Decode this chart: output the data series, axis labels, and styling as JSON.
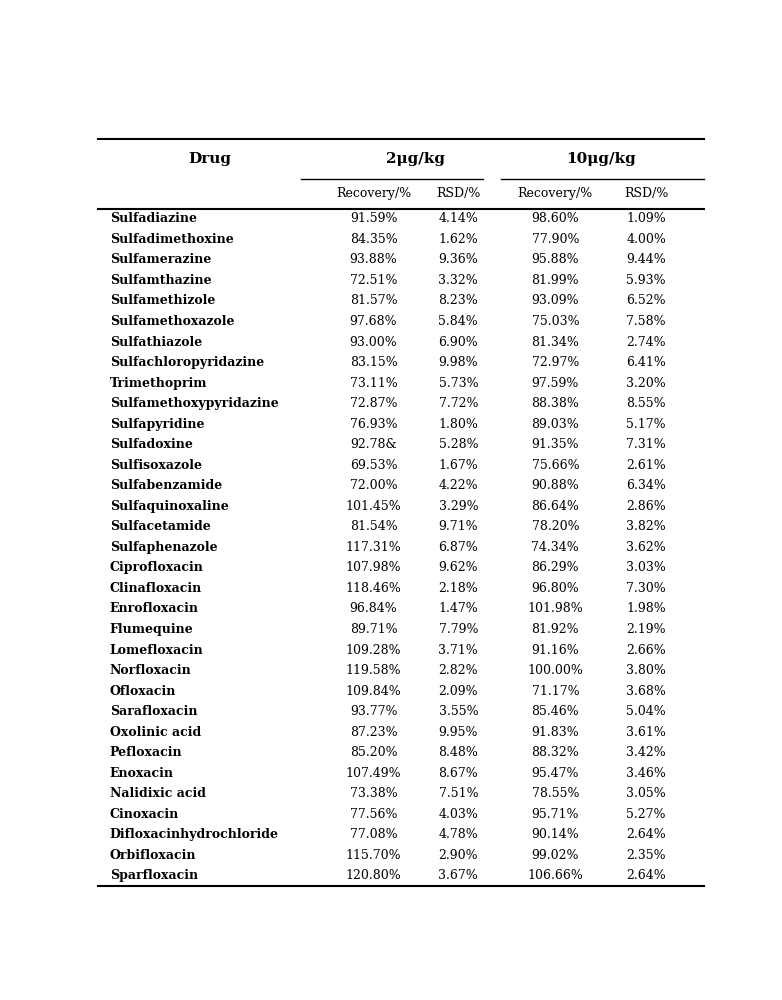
{
  "title_col0": "Drug",
  "title_col1": "2μg/kg",
  "title_col2": "10μg/kg",
  "sub_col1": "Recovery/%",
  "sub_col2": "RSD/%",
  "sub_col3": "Recovery/%",
  "sub_col4": "RSD/%",
  "rows": [
    [
      "Sulfadiazine",
      "91.59%",
      "4.14%",
      "98.60%",
      "1.09%"
    ],
    [
      "Sulfadimethoxine",
      "84.35%",
      "1.62%",
      "77.90%",
      "4.00%"
    ],
    [
      "Sulfamerazine",
      "93.88%",
      "9.36%",
      "95.88%",
      "9.44%"
    ],
    [
      "Sulfamthazine",
      "72.51%",
      "3.32%",
      "81.99%",
      "5.93%"
    ],
    [
      "Sulfamethizole",
      "81.57%",
      "8.23%",
      "93.09%",
      "6.52%"
    ],
    [
      "Sulfamethoxazole",
      "97.68%",
      "5.84%",
      "75.03%",
      "7.58%"
    ],
    [
      "Sulfathiazole",
      "93.00%",
      "6.90%",
      "81.34%",
      "2.74%"
    ],
    [
      "Sulfachloropyridazine",
      "83.15%",
      "9.98%",
      "72.97%",
      "6.41%"
    ],
    [
      "Trimethoprim",
      "73.11%",
      "5.73%",
      "97.59%",
      "3.20%"
    ],
    [
      "Sulfamethoxypyridazine",
      "72.87%",
      "7.72%",
      "88.38%",
      "8.55%"
    ],
    [
      "Sulfapyridine",
      "76.93%",
      "1.80%",
      "89.03%",
      "5.17%"
    ],
    [
      "Sulfadoxine",
      "92.78&",
      "5.28%",
      "91.35%",
      "7.31%"
    ],
    [
      "Sulfisoxazole",
      "69.53%",
      "1.67%",
      "75.66%",
      "2.61%"
    ],
    [
      "Sulfabenzamide",
      "72.00%",
      "4.22%",
      "90.88%",
      "6.34%"
    ],
    [
      "Sulfaquinoxaline",
      "101.45%",
      "3.29%",
      "86.64%",
      "2.86%"
    ],
    [
      "Sulfacetamide",
      "81.54%",
      "9.71%",
      "78.20%",
      "3.82%"
    ],
    [
      "Sulfaphenazole",
      "117.31%",
      "6.87%",
      "74.34%",
      "3.62%"
    ],
    [
      "Ciprofloxacin",
      "107.98%",
      "9.62%",
      "86.29%",
      "3.03%"
    ],
    [
      "Clinafloxacin",
      "118.46%",
      "2.18%",
      "96.80%",
      "7.30%"
    ],
    [
      "Enrofloxacin",
      "96.84%",
      "1.47%",
      "101.98%",
      "1.98%"
    ],
    [
      "Flumequine",
      "89.71%",
      "7.79%",
      "81.92%",
      "2.19%"
    ],
    [
      "Lomefloxacin",
      "109.28%",
      "3.71%",
      "91.16%",
      "2.66%"
    ],
    [
      "Norfloxacin",
      "119.58%",
      "2.82%",
      "100.00%",
      "3.80%"
    ],
    [
      "Ofloxacin",
      "109.84%",
      "2.09%",
      "71.17%",
      "3.68%"
    ],
    [
      "Sarafloxacin",
      "93.77%",
      "3.55%",
      "85.46%",
      "5.04%"
    ],
    [
      "Oxolinic acid",
      "87.23%",
      "9.95%",
      "91.83%",
      "3.61%"
    ],
    [
      "Pefloxacin",
      "85.20%",
      "8.48%",
      "88.32%",
      "3.42%"
    ],
    [
      "Enoxacin",
      "107.49%",
      "8.67%",
      "95.47%",
      "3.46%"
    ],
    [
      "Nalidixic acid",
      "73.38%",
      "7.51%",
      "78.55%",
      "3.05%"
    ],
    [
      "Cinoxacin",
      "77.56%",
      "4.03%",
      "95.71%",
      "5.27%"
    ],
    [
      "Difloxacinhydrochloride",
      "77.08%",
      "4.78%",
      "90.14%",
      "2.64%"
    ],
    [
      "Orbifloxacin",
      "115.70%",
      "2.90%",
      "99.02%",
      "2.35%"
    ],
    [
      "Sparfloxacin",
      "120.80%",
      "3.67%",
      "106.66%",
      "2.64%"
    ]
  ],
  "bg_color": "#ffffff",
  "text_color": "#000000",
  "header_fontsize": 11,
  "subheader_fontsize": 9,
  "data_fontsize": 9,
  "drug_fontsize": 9
}
